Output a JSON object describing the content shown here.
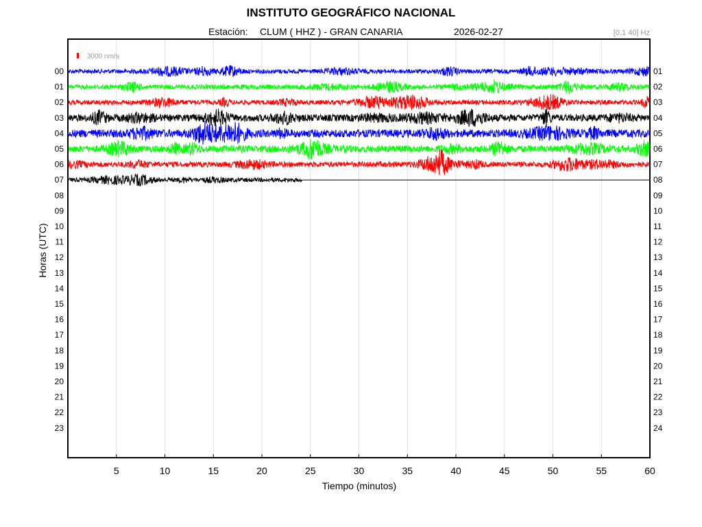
{
  "header": {
    "title": "INSTITUTO GEOGRÁFICO NACIONAL",
    "station_label": "Estación:",
    "station": "CLUM ( HHZ ) - GRAN CANARIA",
    "date": "2026-02-27",
    "filter": "[0.1 40] Hz"
  },
  "scale_label": "3000 nm/s",
  "colors": {
    "blue": "#0000ff",
    "green": "#00ff00",
    "red": "#ff0000",
    "black": "#000000",
    "scale": "#ff0000",
    "grid": "#e0e0e0"
  },
  "chart_data": {
    "type": "line",
    "xlabel": "Tiempo (minutos)",
    "ylabel": "Horas (UTC)",
    "xlim": [
      0,
      60
    ],
    "x_ticks": [
      5,
      10,
      15,
      20,
      25,
      30,
      35,
      40,
      45,
      50,
      55,
      60
    ],
    "left_hours": [
      "00",
      "01",
      "02",
      "03",
      "04",
      "05",
      "06",
      "07",
      "08",
      "09",
      "10",
      "11",
      "12",
      "13",
      "14",
      "15",
      "16",
      "17",
      "18",
      "19",
      "20",
      "21",
      "22",
      "23"
    ],
    "right_hours": [
      "01",
      "02",
      "03",
      "04",
      "05",
      "06",
      "07",
      "08",
      "09",
      "10",
      "11",
      "12",
      "13",
      "14",
      "15",
      "16",
      "17",
      "18",
      "19",
      "20",
      "21",
      "22",
      "23",
      "24"
    ],
    "grid": "vertical",
    "traces": [
      {
        "hour": "00",
        "color": "blue",
        "end_minute": 60,
        "amplitude": 0.6
      },
      {
        "hour": "01",
        "color": "green",
        "end_minute": 60,
        "amplitude": 0.65
      },
      {
        "hour": "02",
        "color": "red",
        "end_minute": 60,
        "amplitude": 0.65
      },
      {
        "hour": "03",
        "color": "black",
        "end_minute": 60,
        "amplitude": 0.95
      },
      {
        "hour": "04",
        "color": "blue",
        "end_minute": 60,
        "amplitude": 1.1
      },
      {
        "hour": "05",
        "color": "green",
        "end_minute": 60,
        "amplitude": 0.95
      },
      {
        "hour": "06",
        "color": "red",
        "end_minute": 60,
        "amplitude": 0.75
      },
      {
        "hour": "07",
        "color": "black",
        "end_minute": 24.2,
        "amplitude": 0.6
      }
    ]
  }
}
